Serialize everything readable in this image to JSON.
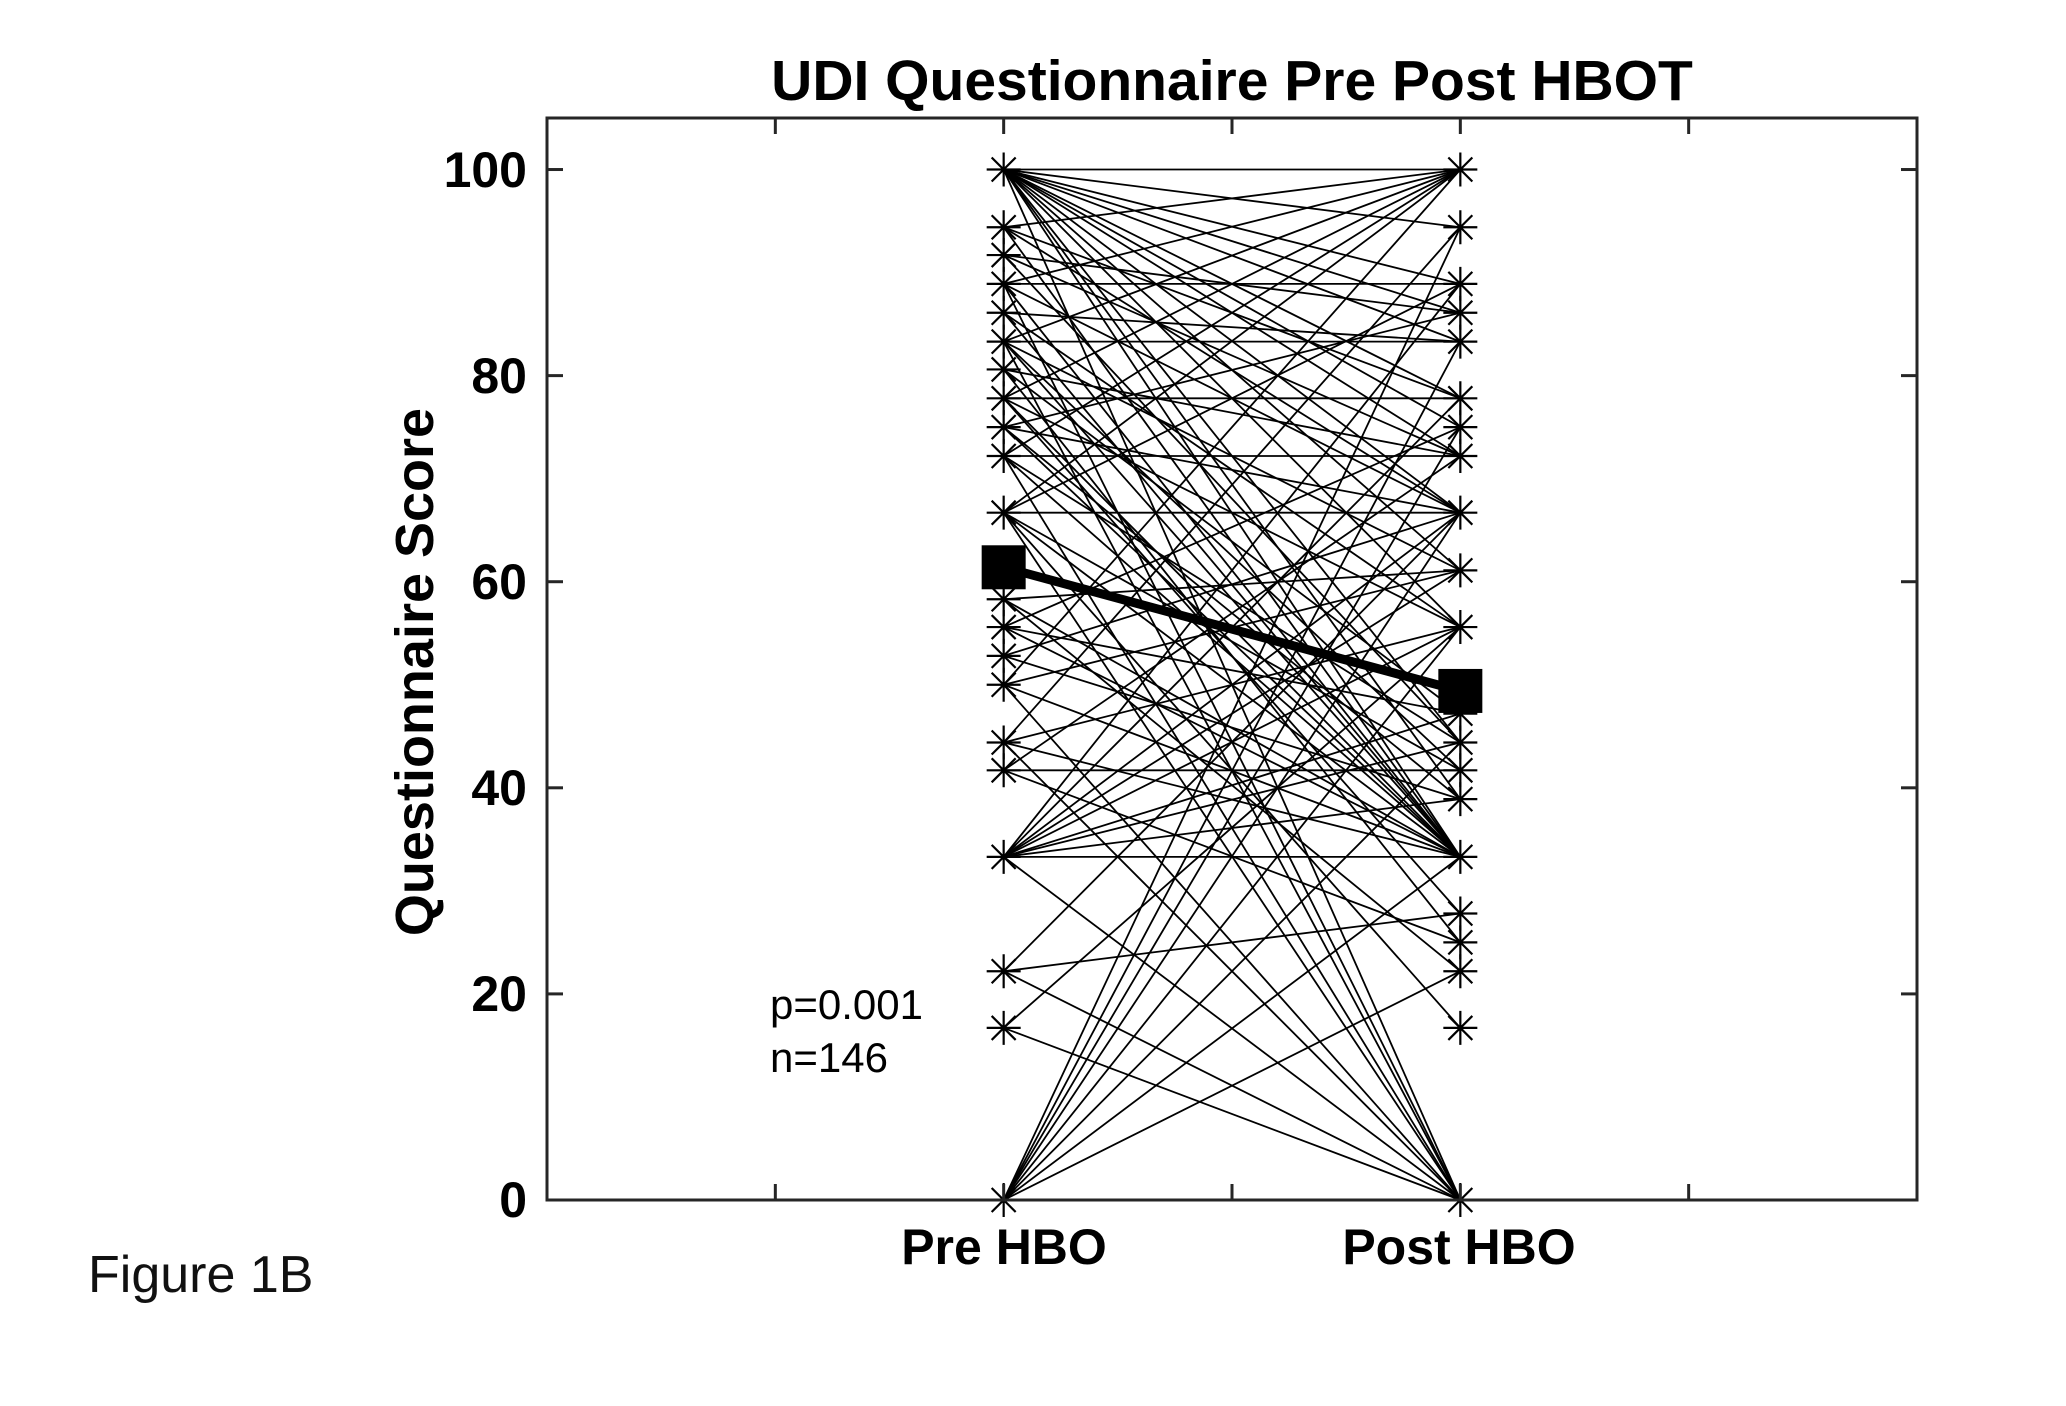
{
  "figure_label": "Figure 1B",
  "chart_data": {
    "type": "line",
    "subtype": "paired-trajectories",
    "title": "UDI Questionnaire Pre Post HBOT",
    "ylabel": "Questionnaire Score",
    "categories": [
      "Pre HBO",
      "Post HBO"
    ],
    "ylim": [
      0,
      105
    ],
    "yticks": [
      0,
      20,
      40,
      60,
      80,
      100
    ],
    "grid": false,
    "legend": "none",
    "marker_style": "asterisk",
    "line_color": "#000000",
    "annotation": {
      "p": "p=0.001",
      "n": "n=146"
    },
    "mean_series": {
      "name": "mean",
      "values": [
        61.4,
        49.4
      ],
      "marker": "filled-square"
    },
    "pairs": [
      [
        100,
        100
      ],
      [
        100,
        94.4
      ],
      [
        100,
        88.9
      ],
      [
        100,
        86.1
      ],
      [
        100,
        83.3
      ],
      [
        100,
        77.8
      ],
      [
        100,
        75
      ],
      [
        100,
        72.2
      ],
      [
        100,
        66.7
      ],
      [
        100,
        61.1
      ],
      [
        100,
        55.6
      ],
      [
        100,
        44.4
      ],
      [
        100,
        38.9
      ],
      [
        100,
        33.3
      ],
      [
        100,
        0
      ],
      [
        94.4,
        100
      ],
      [
        94.4,
        77.8
      ],
      [
        94.4,
        66.7
      ],
      [
        94.4,
        33.3
      ],
      [
        91.7,
        86.1
      ],
      [
        91.7,
        72.2
      ],
      [
        91.7,
        44.4
      ],
      [
        88.9,
        100
      ],
      [
        88.9,
        88.9
      ],
      [
        88.9,
        66.7
      ],
      [
        88.9,
        33.3
      ],
      [
        88.9,
        0
      ],
      [
        86.1,
        83.3
      ],
      [
        86.1,
        55.6
      ],
      [
        86.1,
        33.3
      ],
      [
        83.3,
        100
      ],
      [
        83.3,
        83.3
      ],
      [
        83.3,
        61.1
      ],
      [
        83.3,
        41.7
      ],
      [
        83.3,
        33.3
      ],
      [
        83.3,
        0
      ],
      [
        80.6,
        72.2
      ],
      [
        80.6,
        47.2
      ],
      [
        80.6,
        25
      ],
      [
        77.8,
        100
      ],
      [
        77.8,
        77.8
      ],
      [
        77.8,
        55.6
      ],
      [
        77.8,
        33.3
      ],
      [
        77.8,
        27.8
      ],
      [
        75,
        86.1
      ],
      [
        75,
        66.7
      ],
      [
        75,
        38.9
      ],
      [
        75,
        33.3
      ],
      [
        72.2,
        100
      ],
      [
        72.2,
        72.2
      ],
      [
        72.2,
        44.4
      ],
      [
        72.2,
        33.3
      ],
      [
        72.2,
        0
      ],
      [
        66.7,
        100
      ],
      [
        66.7,
        88.9
      ],
      [
        66.7,
        66.7
      ],
      [
        66.7,
        41.7
      ],
      [
        66.7,
        33.3
      ],
      [
        66.7,
        16.7
      ],
      [
        66.7,
        0
      ],
      [
        58.3,
        61.1
      ],
      [
        58.3,
        33.3
      ],
      [
        58.3,
        22.2
      ],
      [
        55.6,
        75
      ],
      [
        55.6,
        47.2
      ],
      [
        55.6,
        33.3
      ],
      [
        52.8,
        66.7
      ],
      [
        52.8,
        38.9
      ],
      [
        50,
        100
      ],
      [
        50,
        61.1
      ],
      [
        50,
        33.3
      ],
      [
        50,
        0
      ],
      [
        44.4,
        94.4
      ],
      [
        44.4,
        55.6
      ],
      [
        44.4,
        33.3
      ],
      [
        44.4,
        0
      ],
      [
        41.7,
        72.2
      ],
      [
        41.7,
        41.7
      ],
      [
        41.7,
        25
      ],
      [
        33.3,
        88.9
      ],
      [
        33.3,
        77.8
      ],
      [
        33.3,
        66.7
      ],
      [
        33.3,
        61.1
      ],
      [
        33.3,
        55.6
      ],
      [
        33.3,
        47.2
      ],
      [
        33.3,
        44.4
      ],
      [
        33.3,
        38.9
      ],
      [
        33.3,
        33.3
      ],
      [
        33.3,
        0
      ],
      [
        22.2,
        66.7
      ],
      [
        22.2,
        27.8
      ],
      [
        22.2,
        0
      ],
      [
        16.7,
        55.6
      ],
      [
        16.7,
        0
      ],
      [
        0,
        94.4
      ],
      [
        0,
        83.3
      ],
      [
        0,
        75
      ],
      [
        0,
        66.7
      ],
      [
        0,
        55.6
      ],
      [
        0,
        44.4
      ],
      [
        0,
        33.3
      ],
      [
        0,
        22.2
      ],
      [
        0,
        0
      ]
    ]
  }
}
